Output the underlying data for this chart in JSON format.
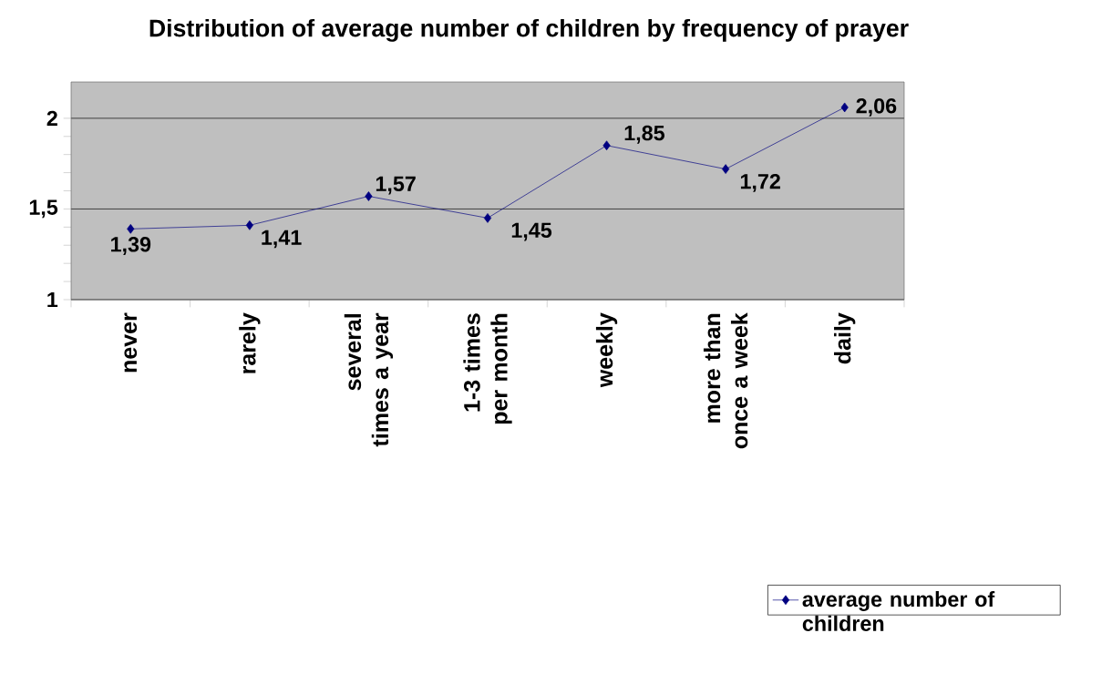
{
  "chart_data": {
    "type": "line",
    "title": "Distribution of average number of children by frequency of prayer",
    "categories": [
      "never",
      "rarely",
      "several times a year",
      "1-3 times per month",
      "weekly",
      "more than once a week",
      "daily"
    ],
    "series": [
      {
        "name": "average number of children",
        "color": "#000080",
        "values": [
          1.39,
          1.41,
          1.57,
          1.45,
          1.85,
          1.72,
          2.06
        ],
        "value_labels": [
          "1,39",
          "1,41",
          "1,57",
          "1,45",
          "1,85",
          "1,72",
          "2,06"
        ]
      }
    ],
    "ylim": [
      1,
      2.2
    ],
    "yticks": [
      1,
      {
        "value": 1.5,
        "label": "1,5"
      },
      2
    ],
    "grid": "y",
    "legend": "bottom right",
    "marker": "diamond"
  }
}
